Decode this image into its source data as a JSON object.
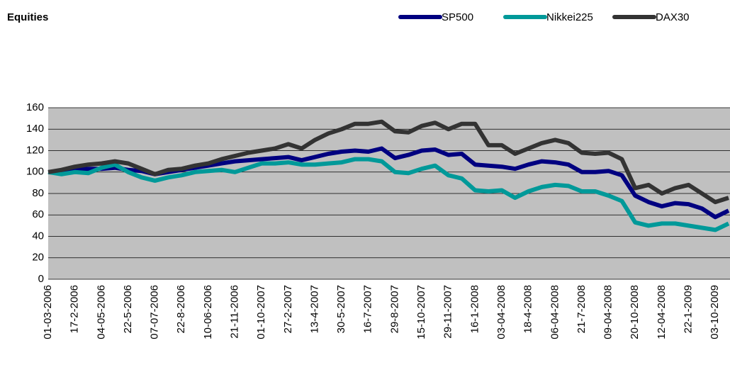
{
  "chart_data": {
    "type": "line",
    "title": "Equities",
    "categories": [
      "01-03-2006",
      null,
      "17-2-2006",
      null,
      "04-05-2006",
      null,
      "22-5-2006",
      null,
      "07-07-2006",
      null,
      "22-8-2006",
      null,
      "10-06-2006",
      null,
      "21-11-2006",
      null,
      "01-10-2007",
      null,
      "27-2-2007",
      null,
      "13-4-2007",
      null,
      "30-5-2007",
      null,
      "16-7-2007",
      null,
      "29-8-2007",
      null,
      "15-10-2007",
      null,
      "29-11-2007",
      null,
      "16-1-2008",
      null,
      "03-04-2008",
      null,
      "18-4-2008",
      null,
      "06-04-2008",
      null,
      "21-7-2008",
      null,
      "09-04-2008",
      null,
      "20-10-2008",
      null,
      "12-04-2008",
      null,
      "22-1-2009",
      null,
      "03-10-2009",
      null
    ],
    "series": [
      {
        "name": "SP500",
        "color": "#000080",
        "values": [
          100,
          100,
          102,
          103,
          103,
          104,
          102,
          101,
          98,
          100,
          102,
          104,
          106,
          108,
          110,
          111,
          112,
          113,
          114,
          111,
          114,
          117,
          119,
          120,
          119,
          122,
          113,
          116,
          120,
          121,
          116,
          117,
          107,
          106,
          105,
          103,
          107,
          110,
          109,
          107,
          100,
          100,
          101,
          97,
          78,
          72,
          68,
          71,
          70,
          66,
          58,
          64
        ]
      },
      {
        "name": "Nikkei225",
        "color": "#009999",
        "values": [
          100,
          98,
          100,
          99,
          104,
          107,
          100,
          95,
          92,
          95,
          97,
          100,
          101,
          102,
          100,
          104,
          108,
          108,
          109,
          107,
          107,
          108,
          109,
          112,
          112,
          110,
          100,
          99,
          103,
          106,
          97,
          94,
          83,
          82,
          83,
          76,
          82,
          86,
          88,
          87,
          82,
          82,
          78,
          73,
          53,
          50,
          52,
          52,
          50,
          48,
          46,
          52
        ]
      },
      {
        "name": "DAX30",
        "color": "#333333",
        "values": [
          100,
          102,
          105,
          107,
          108,
          110,
          108,
          103,
          98,
          102,
          103,
          106,
          108,
          112,
          115,
          118,
          120,
          122,
          126,
          122,
          130,
          136,
          140,
          145,
          145,
          147,
          138,
          137,
          143,
          146,
          140,
          145,
          145,
          125,
          125,
          117,
          122,
          127,
          130,
          127,
          118,
          117,
          118,
          112,
          85,
          88,
          80,
          85,
          88,
          80,
          72,
          76
        ]
      }
    ],
    "ylim": [
      0,
      160
    ],
    "yticks": [
      0,
      20,
      40,
      60,
      80,
      100,
      120,
      140,
      160
    ],
    "grid": true,
    "legend": "top-right"
  }
}
